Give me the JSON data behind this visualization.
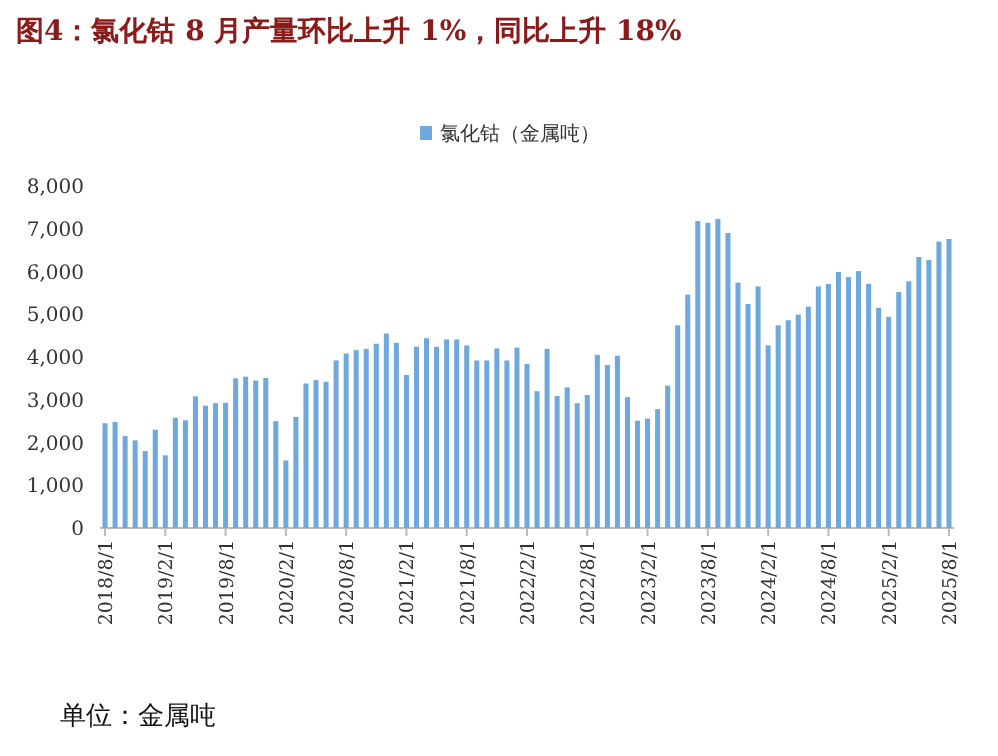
{
  "chart_data": {
    "type": "bar",
    "title": "图4：氯化钴 8 月产量环比上升 1%，同比上升 18%",
    "categories": [
      "2018/8/1",
      null,
      null,
      null,
      null,
      null,
      "2019/2/1",
      null,
      null,
      null,
      null,
      null,
      "2019/8/1",
      null,
      null,
      null,
      null,
      null,
      "2020/2/1",
      null,
      null,
      null,
      null,
      null,
      "2020/8/1",
      null,
      null,
      null,
      null,
      null,
      "2021/2/1",
      null,
      null,
      null,
      null,
      null,
      "2021/8/1",
      null,
      null,
      null,
      null,
      null,
      "2022/2/1",
      null,
      null,
      null,
      null,
      null,
      "2022/8/1",
      null,
      null,
      null,
      null,
      null,
      "2023/2/1",
      null,
      null,
      null,
      null,
      null,
      "2023/8/1",
      null,
      null,
      null,
      null,
      null,
      "2024/2/1",
      null,
      null,
      null,
      null,
      null,
      "2024/8/1",
      null,
      null,
      null,
      null,
      null,
      "2025/2/1",
      null,
      null,
      null,
      null,
      null,
      "2025/8/1"
    ],
    "series": [
      {
        "name": "氯化钴（金属吨）",
        "color": "#6fa8dc",
        "values": [
          2450,
          2480,
          2150,
          2050,
          1800,
          2300,
          1700,
          2580,
          2520,
          3080,
          2860,
          2920,
          2930,
          3500,
          3540,
          3450,
          3510,
          2500,
          1580,
          2600,
          3380,
          3460,
          3420,
          3920,
          4080,
          4160,
          4190,
          4310,
          4550,
          4330,
          3580,
          4240,
          4440,
          4240,
          4410,
          4410,
          4270,
          3920,
          3920,
          4200,
          3920,
          4220,
          3840,
          3200,
          4190,
          3090,
          3290,
          2920,
          3110,
          4050,
          3810,
          4030,
          3060,
          2510,
          2560,
          2780,
          3330,
          4740,
          5460,
          7180,
          7140,
          7230,
          6900,
          5740,
          5240,
          5650,
          4270,
          4740,
          4860,
          4990,
          5180,
          5650,
          5710,
          5990,
          5870,
          6010,
          5710,
          5150,
          4940,
          5520,
          5770,
          6340,
          6270,
          6700,
          6760
        ]
      }
    ],
    "ylim": [
      0,
      8000
    ],
    "yticks": [
      {
        "value": 0,
        "label": "0"
      },
      {
        "value": 1000,
        "label": "1,000"
      },
      {
        "value": 2000,
        "label": "2,000"
      },
      {
        "value": 3000,
        "label": "3,000"
      },
      {
        "value": 4000,
        "label": "4,000"
      },
      {
        "value": 5000,
        "label": "5,000"
      },
      {
        "value": 6000,
        "label": "6,000"
      },
      {
        "value": 7000,
        "label": "7,000"
      },
      {
        "value": 8000,
        "label": "8,000"
      }
    ],
    "legend": "top",
    "annotations": [
      "单位：金属吨"
    ]
  }
}
